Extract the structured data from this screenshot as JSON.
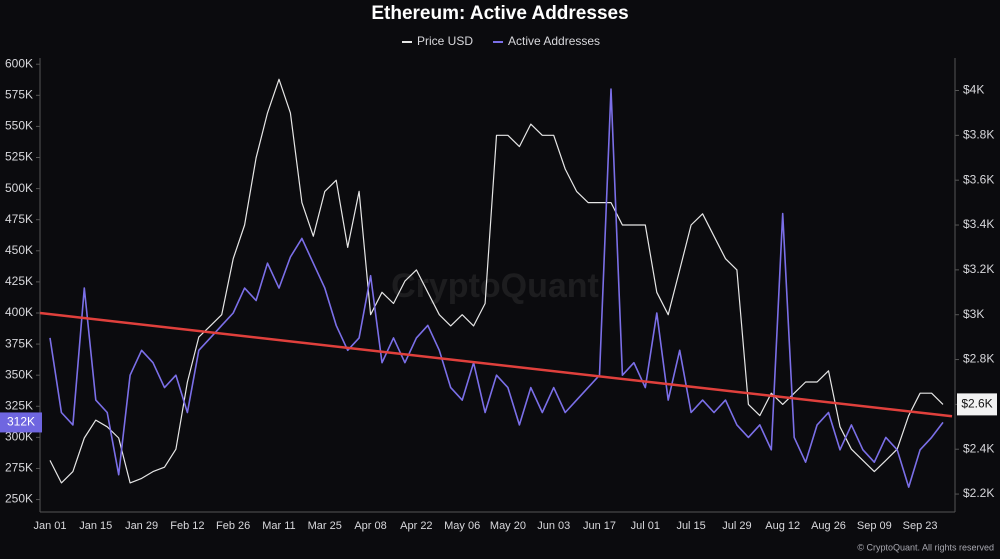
{
  "chart_data": {
    "type": "line",
    "title": "Ethereum: Active Addresses",
    "watermark": "CryptoQuant",
    "footer": "© CryptoQuant. All rights reserved",
    "categories": [
      "Jan 01",
      null,
      null,
      null,
      "Jan 15",
      null,
      null,
      null,
      "Jan 29",
      null,
      null,
      null,
      "Feb 12",
      null,
      null,
      null,
      "Feb 26",
      null,
      null,
      null,
      "Mar 11",
      null,
      null,
      null,
      "Mar 25",
      null,
      null,
      null,
      "Apr 08",
      null,
      null,
      null,
      "Apr 22",
      null,
      null,
      null,
      "May 06",
      null,
      null,
      null,
      "May 20",
      null,
      null,
      null,
      "Jun 03",
      null,
      null,
      null,
      "Jun 17",
      null,
      null,
      null,
      "Jul 01",
      null,
      null,
      null,
      "Jul 15",
      null,
      null,
      null,
      "Jul 29",
      null,
      null,
      null,
      "Aug 12",
      null,
      null,
      null,
      "Aug 26",
      null,
      null,
      null,
      "Sep 09",
      null,
      null,
      null,
      "Sep 23",
      null,
      null
    ],
    "series": [
      {
        "name": "Price USD",
        "color": "#e6e6e6",
        "axis": "y2",
        "values": [
          2350,
          2250,
          2300,
          2450,
          2530,
          2500,
          2450,
          2250,
          2270,
          2300,
          2320,
          2400,
          2700,
          2900,
          2950,
          3000,
          3250,
          3400,
          3700,
          3900,
          4050,
          3900,
          3500,
          3350,
          3550,
          3600,
          3300,
          3550,
          3000,
          3100,
          3050,
          3150,
          3200,
          3100,
          3000,
          2950,
          3000,
          2950,
          3050,
          3800,
          3800,
          3750,
          3850,
          3800,
          3800,
          3650,
          3550,
          3500,
          3500,
          3500,
          3400,
          3400,
          3400,
          3100,
          3000,
          3200,
          3400,
          3450,
          3350,
          3250,
          3200,
          2600,
          2550,
          2650,
          2600,
          2650,
          2700,
          2700,
          2750,
          2500,
          2400,
          2350,
          2300,
          2350,
          2400,
          2550,
          2650,
          2650,
          2600
        ]
      },
      {
        "name": "Active Addresses",
        "color": "#7b6fe8",
        "values": [
          380000,
          320000,
          310000,
          420000,
          330000,
          320000,
          270000,
          350000,
          370000,
          360000,
          340000,
          350000,
          320000,
          370000,
          380000,
          390000,
          400000,
          420000,
          410000,
          440000,
          420000,
          445000,
          460000,
          440000,
          420000,
          390000,
          370000,
          380000,
          430000,
          360000,
          380000,
          360000,
          380000,
          390000,
          370000,
          340000,
          330000,
          360000,
          320000,
          350000,
          340000,
          310000,
          340000,
          320000,
          340000,
          320000,
          330000,
          340000,
          350000,
          580000,
          350000,
          360000,
          340000,
          400000,
          330000,
          370000,
          320000,
          330000,
          320000,
          330000,
          310000,
          300000,
          310000,
          290000,
          480000,
          300000,
          280000,
          310000,
          320000,
          290000,
          310000,
          290000,
          280000,
          300000,
          290000,
          260000,
          290000,
          300000,
          312000
        ]
      }
    ],
    "trend_line": {
      "color": "#e0403c",
      "values": [
        400000,
        317000
      ]
    },
    "ylim": [
      240000,
      605000
    ],
    "yticks": [
      {
        "value": 250000,
        "label": "250K"
      },
      {
        "value": 275000,
        "label": "275K"
      },
      {
        "value": 300000,
        "label": "300K"
      },
      {
        "value": 325000,
        "label": "325K"
      },
      {
        "value": 350000,
        "label": "350K"
      },
      {
        "value": 375000,
        "label": "375K"
      },
      {
        "value": 400000,
        "label": "400K"
      },
      {
        "value": 425000,
        "label": "425K"
      },
      {
        "value": 450000,
        "label": "450K"
      },
      {
        "value": 475000,
        "label": "475K"
      },
      {
        "value": 500000,
        "label": "500K"
      },
      {
        "value": 525000,
        "label": "525K"
      },
      {
        "value": 550000,
        "label": "550K"
      },
      {
        "value": 575000,
        "label": "575K"
      },
      {
        "value": 600000,
        "label": "600K"
      }
    ],
    "y2lim": [
      2120,
      4145
    ],
    "y2ticks": [
      {
        "value": 2200,
        "label": "$2.2K"
      },
      {
        "value": 2400,
        "label": "$2.4K"
      },
      {
        "value": 2600,
        "label": "$2.6K"
      },
      {
        "value": 2800,
        "label": "$2.8K"
      },
      {
        "value": 3000,
        "label": "$3K"
      },
      {
        "value": 3200,
        "label": "$3.2K"
      },
      {
        "value": 3400,
        "label": "$3.4K"
      },
      {
        "value": 3600,
        "label": "$3.6K"
      },
      {
        "value": 3800,
        "label": "$3.8K"
      },
      {
        "value": 4000,
        "label": "$4K"
      }
    ],
    "current_labels": [
      {
        "value": 312000,
        "label": "312K"
      },
      {
        "value": 2600,
        "label": "$2.6K"
      }
    ]
  }
}
